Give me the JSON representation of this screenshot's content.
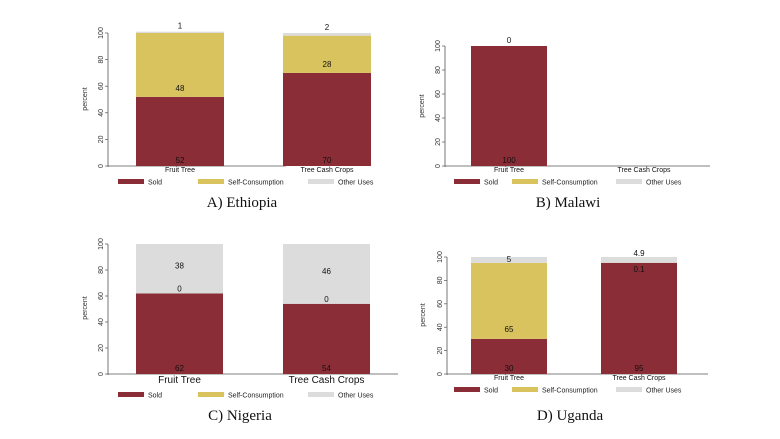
{
  "colors": {
    "sold": "#8b2d36",
    "self": "#d8c35e",
    "other": "#dcdcdc",
    "axis": "#555555"
  },
  "chart_data": [
    {
      "type": "bar",
      "stacked": true,
      "title": "A) Ethiopia",
      "ylabel": "percent",
      "ylim": [
        0,
        100
      ],
      "yticks": [
        "0",
        "20",
        "40",
        "60",
        "80",
        "100"
      ],
      "categories": [
        "Fruit Tree",
        "Tree Cash Crops"
      ],
      "series": [
        {
          "name": "Sold",
          "values": [
            52,
            70
          ],
          "labels": [
            "52",
            "70"
          ]
        },
        {
          "name": "Self-Consumption",
          "values": [
            48,
            28
          ],
          "labels": [
            "48",
            "28"
          ]
        },
        {
          "name": "Other Uses",
          "values": [
            1,
            2
          ],
          "labels": [
            "1",
            "2"
          ]
        }
      ],
      "legend": [
        "Sold",
        "Self-Consumption",
        "Other Uses"
      ]
    },
    {
      "type": "bar",
      "stacked": true,
      "title": "B) Malawi",
      "ylabel": "percent",
      "ylim": [
        0,
        100
      ],
      "yticks": [
        "0",
        "20",
        "40",
        "60",
        "80",
        "100"
      ],
      "categories": [
        "Fruit Tree",
        "Tree Cash Crops"
      ],
      "series": [
        {
          "name": "Sold",
          "values": [
            100,
            0
          ],
          "labels": [
            "100",
            ""
          ]
        },
        {
          "name": "Self-Consumption",
          "values": [
            0,
            0
          ],
          "labels": [
            "",
            ""
          ]
        },
        {
          "name": "Other Uses",
          "values": [
            0,
            0
          ],
          "labels": [
            "0",
            ""
          ]
        }
      ],
      "legend": [
        "Sold",
        "Self-Consumption",
        "Other Uses"
      ]
    },
    {
      "type": "bar",
      "stacked": true,
      "title": "C) Nigeria",
      "ylabel": "percent",
      "ylim": [
        0,
        100
      ],
      "yticks": [
        "0",
        "20",
        "40",
        "60",
        "80",
        "100"
      ],
      "categories": [
        "Fruit Tree",
        "Tree Cash Crops"
      ],
      "series": [
        {
          "name": "Sold",
          "values": [
            62,
            54
          ],
          "labels": [
            "62",
            "54"
          ]
        },
        {
          "name": "Self-Consumption",
          "values": [
            0,
            0
          ],
          "labels": [
            "0",
            "0"
          ]
        },
        {
          "name": "Other Uses",
          "values": [
            38,
            46
          ],
          "labels": [
            "38",
            "46"
          ]
        }
      ],
      "legend": [
        "Sold",
        "Self-Consumption",
        "Other Uses"
      ]
    },
    {
      "type": "bar",
      "stacked": true,
      "title": "D) Uganda",
      "ylabel": "percent",
      "ylim": [
        0,
        100
      ],
      "yticks": [
        "0",
        "20",
        "40",
        "60",
        "80",
        "100"
      ],
      "categories": [
        "Fruit Tree",
        "Tree Cash Crops"
      ],
      "series": [
        {
          "name": "Sold",
          "values": [
            30,
            95
          ],
          "labels": [
            "30",
            "95"
          ]
        },
        {
          "name": "Self-Consumption",
          "values": [
            65,
            0.1
          ],
          "labels": [
            "65",
            "0.1"
          ]
        },
        {
          "name": "Other Uses",
          "values": [
            5,
            4.9
          ],
          "labels": [
            "5",
            "4.9"
          ]
        }
      ],
      "legend": [
        "Sold",
        "Self-Consumption",
        "Other Uses"
      ]
    }
  ]
}
